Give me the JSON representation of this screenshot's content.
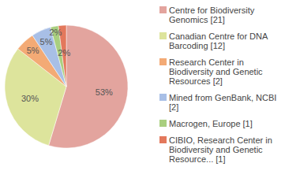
{
  "chart_data": {
    "type": "pie",
    "categories": [
      "Centre for Biodiversity Genomics [21]",
      "Canadian Centre for DNA Barcoding [12]",
      "Research Center in Biodiversity and Genetic Resources [2]",
      "Mined from GenBank, NCBI [2]",
      "Macrogen, Europe [1]",
      "CIBIO, Research Center in Biodiversity and Genetic Resource... [1]"
    ],
    "values": [
      53,
      30,
      5,
      5,
      2,
      2
    ],
    "value_labels": [
      "53%",
      "30%",
      "5%",
      "5%",
      "2%",
      "2%"
    ],
    "colors": [
      "#e3a49e",
      "#dde49c",
      "#f3aa75",
      "#a8bfe6",
      "#a9cf7f",
      "#e3785c"
    ],
    "data_labels": true,
    "legend": "right"
  }
}
